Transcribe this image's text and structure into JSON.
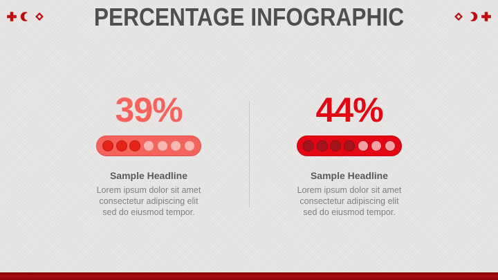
{
  "title": "PERCENTAGE INFOGRAPHIC",
  "colors": {
    "background": "#e6e5e4",
    "title": "#4f4f4f",
    "icon_red": "#c00a0a",
    "divider": "#c9c9c9",
    "headline": "#595959",
    "body": "#7f7f7f",
    "footer_top": "#7a0506",
    "footer_mid": "#a60c0e",
    "footer_bottom": "#8e0808"
  },
  "header": {
    "left_icons": [
      "red-cross",
      "red-crescent",
      "red-crystal"
    ],
    "right_icons": [
      "red-crystal",
      "red-crescent",
      "red-cross"
    ]
  },
  "items": [
    {
      "percent": "39%",
      "dots_total": 7,
      "dots_filled": 3,
      "headline": "Sample Headline",
      "body_lines": [
        "Lorem ipsum dolor sit amet",
        "consectetur adipiscing elit",
        "sed do eiusmod tempor."
      ],
      "colors": {
        "accent": "#f6635c",
        "pill": "#f4645d",
        "pill_border": "#e0514a",
        "dot_filled": "#e52218",
        "dot_filled_ring": "#c6170f",
        "dot_light": "#f9b6b3",
        "dot_light_ring": "#eb6a63"
      }
    },
    {
      "percent": "44%",
      "dots_total": 7,
      "dots_filled": 4,
      "headline": "Sample Headline",
      "body_lines": [
        "Lorem ipsum dolor sit amet",
        "consectetur adipiscing elit",
        "sed do eiusmod tempor."
      ],
      "colors": {
        "accent": "#e20713",
        "pill": "#e30613",
        "pill_border": "#c40511",
        "dot_filled": "#a4161c",
        "dot_filled_ring": "#861015",
        "dot_light": "#f4a0a7",
        "dot_light_ring": "#c70812"
      }
    }
  ],
  "chart_data": {
    "type": "bar",
    "title": "PERCENTAGE INFOGRAPHIC",
    "categories": [
      "Sample Headline",
      "Sample Headline"
    ],
    "values": [
      39,
      44
    ],
    "units": "%",
    "series": [
      {
        "name": "39% pill",
        "dots_total": 7,
        "dots_filled": 3
      },
      {
        "name": "44% pill",
        "dots_total": 7,
        "dots_filled": 4
      }
    ],
    "legend_position": "none",
    "grid": false
  }
}
